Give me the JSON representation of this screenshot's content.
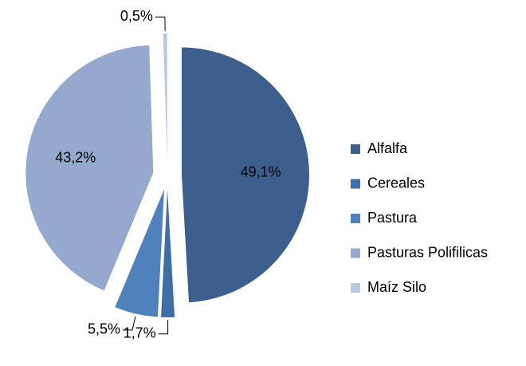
{
  "chart_data": {
    "type": "pie",
    "categories": [
      "Alfalfa",
      "Cereales",
      "Pastura",
      "Pasturas Polifilicas",
      "Maíz Silo"
    ],
    "values": [
      49.1,
      1.7,
      5.5,
      43.2,
      0.5
    ],
    "value_labels": [
      "49,1%",
      "1,7%",
      "5,5%",
      "43,2%",
      "0,5%"
    ],
    "colors": [
      "#3c5f8e",
      "#3f6ea8",
      "#4f81bd",
      "#95a9cf",
      "#b9c8e2"
    ],
    "legend": "right"
  }
}
